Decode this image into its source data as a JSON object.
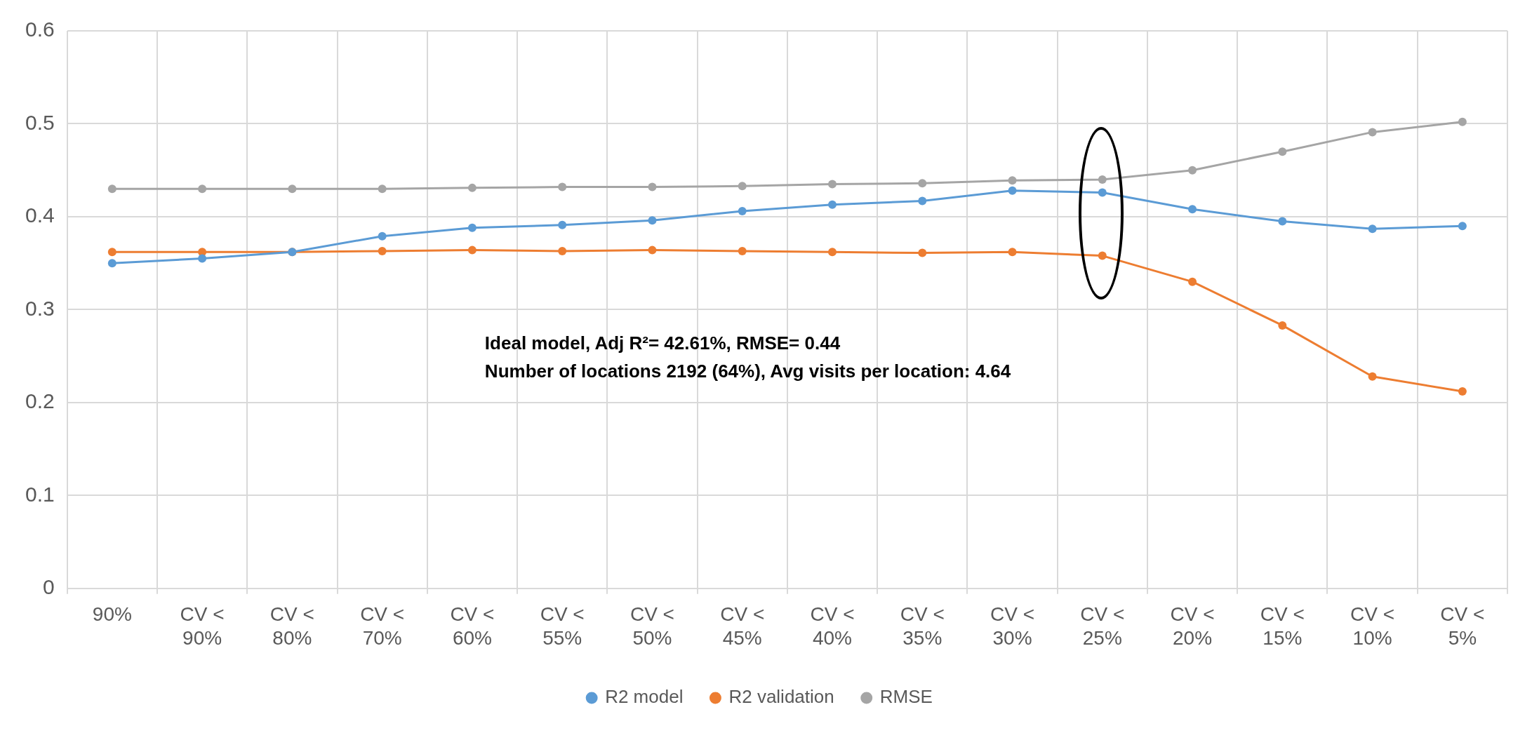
{
  "chart_data": {
    "type": "line",
    "categories": [
      "90%",
      "CV < 90%",
      "CV < 80%",
      "CV < 70%",
      "CV < 60%",
      "CV < 55%",
      "CV < 50%",
      "CV < 45%",
      "CV < 40%",
      "CV < 35%",
      "CV < 30%",
      "CV < 25%",
      "CV < 20%",
      "CV < 15%",
      "CV < 10%",
      "CV < 5%"
    ],
    "series": [
      {
        "name": "R2 model",
        "color": "#5b9bd5",
        "values": [
          0.35,
          0.355,
          0.362,
          0.379,
          0.388,
          0.391,
          0.396,
          0.406,
          0.413,
          0.417,
          0.428,
          0.426,
          0.408,
          0.395,
          0.387,
          0.39
        ]
      },
      {
        "name": "R2 validation",
        "color": "#ed7d31",
        "values": [
          0.362,
          0.362,
          0.362,
          0.363,
          0.364,
          0.363,
          0.364,
          0.363,
          0.362,
          0.361,
          0.362,
          0.358,
          0.33,
          0.283,
          0.228,
          0.212
        ]
      },
      {
        "name": "RMSE",
        "color": "#a5a5a5",
        "values": [
          0.43,
          0.43,
          0.43,
          0.43,
          0.431,
          0.432,
          0.432,
          0.433,
          0.435,
          0.436,
          0.439,
          0.44,
          0.45,
          0.47,
          0.491,
          0.502
        ]
      }
    ],
    "ylim": [
      0,
      0.6
    ],
    "yticks": [
      0,
      0.1,
      0.2,
      0.3,
      0.4,
      0.5,
      0.6
    ],
    "grid": true,
    "legend": "bottom",
    "marker": "circle",
    "line_style": "solid",
    "annotations": [
      "Ideal model, Adj R²= 42.61%, RMSE= 0.44",
      "Number of locations 2192 (64%), Avg visits per location: 4.64"
    ]
  }
}
